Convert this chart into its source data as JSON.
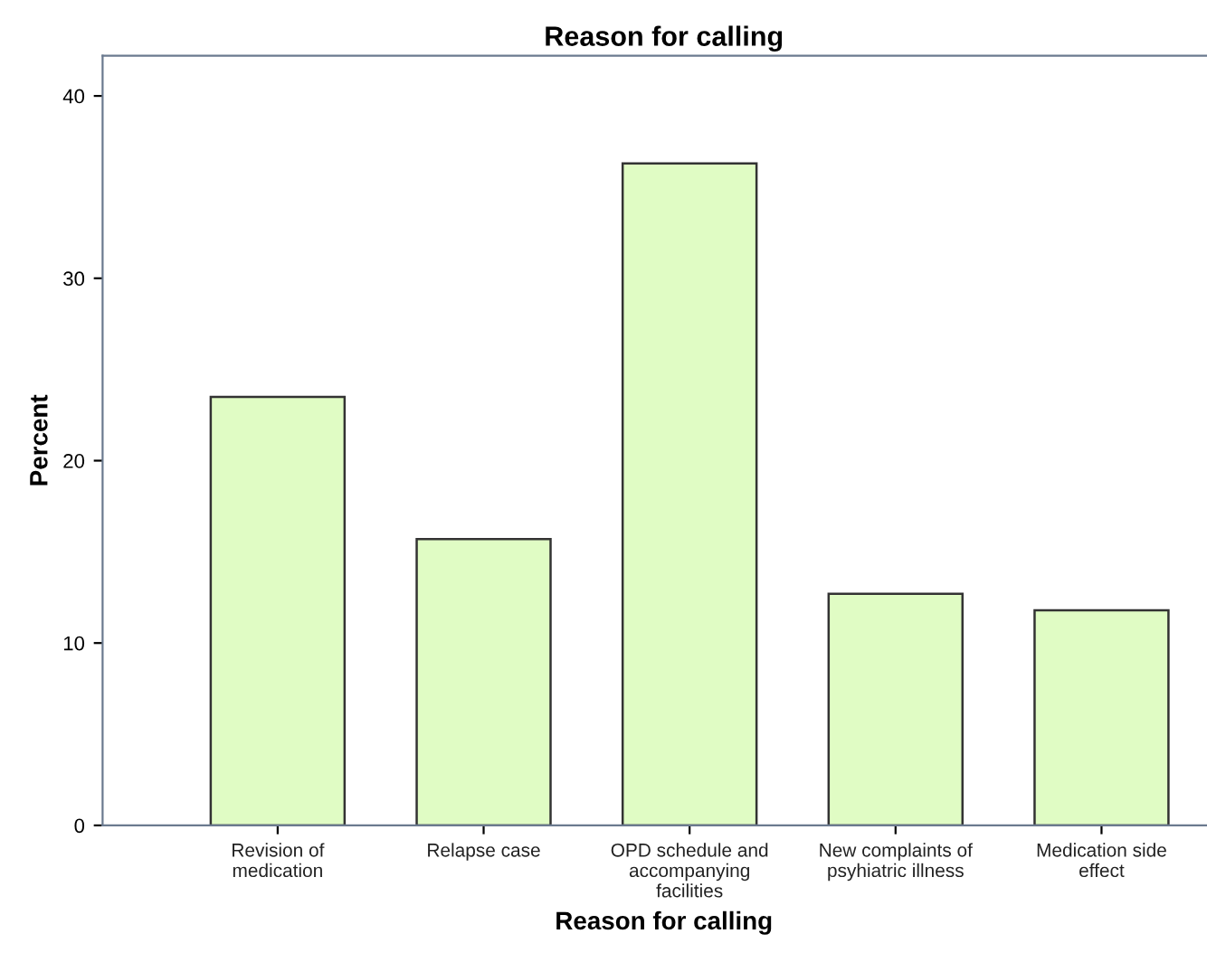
{
  "chart_data": {
    "type": "bar",
    "title": "Reason for calling",
    "xlabel": "Reason for calling",
    "ylabel": "Percent",
    "categories": [
      "Revision of\nmedication",
      "Relapse case",
      "OPD schedule and\naccompanying\nfacilities",
      "New complaints of\npsyhiatric illness",
      "Medication side\neffect"
    ],
    "values": [
      23.5,
      15.7,
      36.3,
      12.7,
      11.8
    ],
    "color": "#e0fcc4",
    "ylim": [
      0,
      42.2
    ],
    "yticks": [
      0,
      10,
      20,
      30,
      40
    ],
    "grid": false
  }
}
